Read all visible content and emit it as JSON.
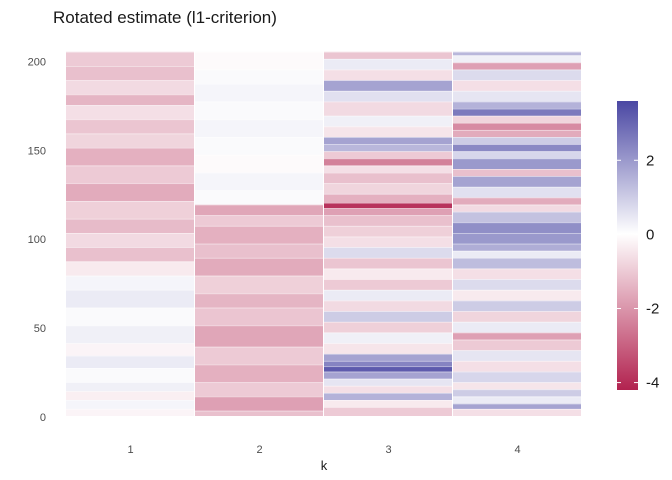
{
  "chart_data": {
    "type": "heatmap",
    "title": "Rotated estimate (l1-criterion)",
    "xlabel": "k",
    "ylabel": "",
    "x": [
      1,
      2,
      3,
      4
    ],
    "x_tick_labels": [
      "1",
      "2",
      "3",
      "4"
    ],
    "y_range": [
      1,
      206
    ],
    "y_ticks": [
      0,
      50,
      100,
      150,
      200
    ],
    "y_tick_labels": [
      "0",
      "50",
      "100",
      "150",
      "200"
    ],
    "color_scale": {
      "low": "#b2224f",
      "mid": "#ffffff",
      "high": "#4a47a3",
      "limits": [
        -4.2,
        3.6
      ],
      "legend_ticks": [
        2,
        0,
        -2,
        -4
      ],
      "legend_tick_labels": [
        "2",
        "0",
        "-2",
        "-4"
      ],
      "legend_position": "right"
    },
    "bands": [
      {
        "x": 1,
        "segments": [
          [
            1,
            5,
            -0.2
          ],
          [
            5,
            10,
            0.2
          ],
          [
            10,
            15,
            -0.3
          ],
          [
            15,
            20,
            0.3
          ],
          [
            20,
            28,
            0.1
          ],
          [
            28,
            35,
            0.4
          ],
          [
            35,
            42,
            -0.2
          ],
          [
            42,
            52,
            0.3
          ],
          [
            52,
            62,
            0.1
          ],
          [
            62,
            72,
            0.4
          ],
          [
            72,
            80,
            0.2
          ],
          [
            80,
            88,
            -0.4
          ],
          [
            88,
            96,
            -1.2
          ],
          [
            96,
            104,
            -0.7
          ],
          [
            104,
            112,
            -1.3
          ],
          [
            112,
            122,
            -0.9
          ],
          [
            122,
            132,
            -1.6
          ],
          [
            132,
            142,
            -1.0
          ],
          [
            142,
            152,
            -1.5
          ],
          [
            152,
            160,
            -0.8
          ],
          [
            160,
            168,
            -1.1
          ],
          [
            168,
            176,
            -0.6
          ],
          [
            176,
            182,
            -1.4
          ],
          [
            182,
            190,
            -0.7
          ],
          [
            190,
            198,
            -1.2
          ],
          [
            198,
            206,
            -1.0
          ]
        ]
      },
      {
        "x": 2,
        "segments": [
          [
            1,
            4,
            -1.2
          ],
          [
            4,
            12,
            -1.8
          ],
          [
            12,
            20,
            -1.0
          ],
          [
            20,
            30,
            -1.5
          ],
          [
            30,
            40,
            -1.0
          ],
          [
            40,
            52,
            -1.7
          ],
          [
            52,
            62,
            -1.1
          ],
          [
            62,
            70,
            -1.4
          ],
          [
            70,
            80,
            -0.9
          ],
          [
            80,
            90,
            -1.6
          ],
          [
            90,
            98,
            -1.2
          ],
          [
            98,
            108,
            -1.5
          ],
          [
            108,
            114,
            -1.0
          ],
          [
            114,
            120,
            -1.7
          ],
          [
            120,
            128,
            0.1
          ],
          [
            128,
            138,
            0.2
          ],
          [
            138,
            148,
            -0.1
          ],
          [
            148,
            158,
            0.1
          ],
          [
            158,
            168,
            0.2
          ],
          [
            168,
            178,
            0.1
          ],
          [
            178,
            188,
            0.2
          ],
          [
            188,
            196,
            0.1
          ],
          [
            196,
            206,
            -0.1
          ]
        ]
      },
      {
        "x": 3,
        "segments": [
          [
            1,
            6,
            -1.0
          ],
          [
            6,
            10,
            -0.4
          ],
          [
            10,
            14,
            1.5
          ],
          [
            14,
            18,
            -0.6
          ],
          [
            18,
            22,
            0.5
          ],
          [
            22,
            26,
            1.8
          ],
          [
            26,
            29,
            3.2
          ],
          [
            29,
            32,
            2.4
          ],
          [
            32,
            36,
            1.8
          ],
          [
            36,
            42,
            -0.5
          ],
          [
            42,
            48,
            0.3
          ],
          [
            48,
            54,
            -0.9
          ],
          [
            54,
            60,
            1.0
          ],
          [
            60,
            66,
            -0.7
          ],
          [
            66,
            72,
            0.4
          ],
          [
            72,
            78,
            -1.0
          ],
          [
            78,
            84,
            -0.4
          ],
          [
            84,
            90,
            -1.1
          ],
          [
            90,
            96,
            0.7
          ],
          [
            96,
            102,
            -0.6
          ],
          [
            102,
            108,
            -0.9
          ],
          [
            108,
            114,
            -1.2
          ],
          [
            114,
            118,
            -1.8
          ],
          [
            118,
            121,
            -3.9
          ],
          [
            121,
            126,
            -1.5
          ],
          [
            126,
            132,
            -0.8
          ],
          [
            132,
            138,
            -1.2
          ],
          [
            138,
            142,
            -0.6
          ],
          [
            142,
            146,
            -2.4
          ],
          [
            146,
            150,
            -1.0
          ],
          [
            150,
            154,
            1.4
          ],
          [
            154,
            158,
            1.8
          ],
          [
            158,
            164,
            -0.5
          ],
          [
            164,
            170,
            0.3
          ],
          [
            170,
            178,
            -0.7
          ],
          [
            178,
            184,
            0.6
          ],
          [
            184,
            190,
            1.8
          ],
          [
            190,
            196,
            -0.6
          ],
          [
            196,
            202,
            0.4
          ],
          [
            202,
            206,
            -1.1
          ]
        ]
      },
      {
        "x": 4,
        "segments": [
          [
            1,
            5,
            -0.6
          ],
          [
            5,
            8,
            1.8
          ],
          [
            8,
            12,
            0.4
          ],
          [
            12,
            16,
            1.0
          ],
          [
            16,
            20,
            -0.5
          ],
          [
            20,
            26,
            0.8
          ],
          [
            26,
            32,
            -0.6
          ],
          [
            32,
            38,
            0.5
          ],
          [
            38,
            44,
            -1.0
          ],
          [
            44,
            48,
            -1.8
          ],
          [
            48,
            54,
            0.4
          ],
          [
            54,
            60,
            -0.8
          ],
          [
            60,
            66,
            1.0
          ],
          [
            66,
            72,
            -0.4
          ],
          [
            72,
            78,
            0.7
          ],
          [
            78,
            84,
            -0.6
          ],
          [
            84,
            90,
            1.3
          ],
          [
            90,
            94,
            0.4
          ],
          [
            94,
            98,
            1.6
          ],
          [
            98,
            104,
            2.0
          ],
          [
            104,
            110,
            2.2
          ],
          [
            110,
            116,
            1.2
          ],
          [
            116,
            120,
            -0.7
          ],
          [
            120,
            124,
            -1.6
          ],
          [
            124,
            130,
            0.6
          ],
          [
            130,
            136,
            1.8
          ],
          [
            136,
            140,
            -1.2
          ],
          [
            140,
            146,
            2.0
          ],
          [
            146,
            150,
            0.8
          ],
          [
            150,
            154,
            2.3
          ],
          [
            154,
            158,
            1.0
          ],
          [
            158,
            162,
            -1.6
          ],
          [
            162,
            166,
            -2.2
          ],
          [
            166,
            170,
            -0.8
          ],
          [
            170,
            174,
            2.6
          ],
          [
            174,
            178,
            1.5
          ],
          [
            178,
            184,
            0.5
          ],
          [
            184,
            190,
            -0.6
          ],
          [
            190,
            196,
            0.7
          ],
          [
            196,
            200,
            -1.8
          ],
          [
            200,
            204,
            0.3
          ],
          [
            204,
            206,
            1.4
          ]
        ]
      }
    ]
  }
}
